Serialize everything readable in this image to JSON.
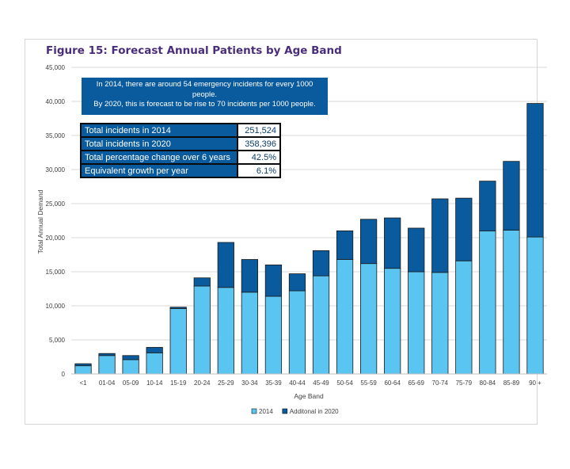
{
  "chart_data": {
    "type": "bar",
    "stacked": true,
    "title": "Figure 15:  Forecast Annual Patients by Age Band",
    "xlabel": "Age Band",
    "ylabel": "Total Annual Demand",
    "ylim": [
      0,
      45000
    ],
    "yticks": [
      "0",
      "5,000",
      "10,000",
      "15,000",
      "20,000",
      "25,000",
      "30,000",
      "35,000",
      "40,000",
      "45,000"
    ],
    "ytick_values": [
      0,
      5000,
      10000,
      15000,
      20000,
      25000,
      30000,
      35000,
      40000,
      45000
    ],
    "categories": [
      "<1",
      "01-04",
      "05-09",
      "10-14",
      "15-19",
      "20-24",
      "25-29",
      "30-34",
      "35-39",
      "40-44",
      "45-49",
      "50-54",
      "55-59",
      "60-64",
      "65-69",
      "70-74",
      "75-79",
      "80-84",
      "85-89",
      "90 +"
    ],
    "series": [
      {
        "name": "2014",
        "color": "#5bc5f2",
        "values": [
          1200,
          2700,
          2100,
          3100,
          9600,
          12900,
          12700,
          12000,
          11400,
          12200,
          14400,
          16800,
          16200,
          15500,
          15000,
          14900,
          16600,
          21000,
          21100,
          20100
        ]
      },
      {
        "name": "Additonal in 2020",
        "color": "#0a5b9e",
        "values": [
          300,
          300,
          600,
          800,
          200,
          1200,
          6600,
          4800,
          4600,
          2500,
          3700,
          4200,
          6500,
          7400,
          6400,
          10800,
          9200,
          7300,
          10100,
          19600
        ]
      }
    ],
    "legend_position": "bottom",
    "grid": true
  },
  "annotation": {
    "lines": [
      "In 2014, there are around 54 emergency incidents for every 1000",
      "people.",
      "By 2020, this is forecast to be rise to 70 incidents per 1000 people."
    ]
  },
  "stats_table": [
    {
      "label": "Total incidents in 2014",
      "value": "251,524"
    },
    {
      "label": "Total incidents in 2020",
      "value": "358,396"
    },
    {
      "label": "Total percentage change over 6 years",
      "value": "42.5%"
    },
    {
      "label": "Equivalent growth per year",
      "value": "6.1%"
    }
  ]
}
